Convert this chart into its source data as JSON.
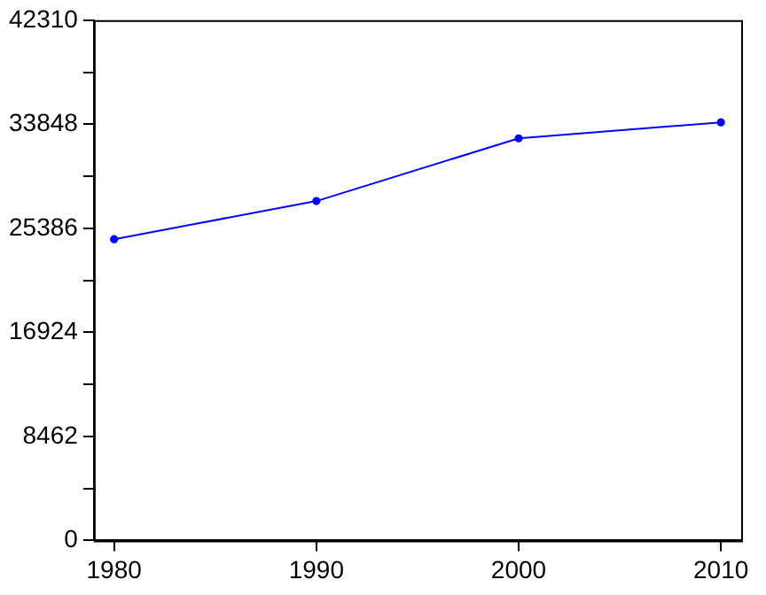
{
  "chart_data": {
    "type": "line",
    "x": [
      1980,
      1990,
      2000,
      2010
    ],
    "series": [
      {
        "color": "#0000ff",
        "values": [
          24500,
          27600,
          32700,
          34000
        ]
      }
    ],
    "xlim": [
      1979,
      2011
    ],
    "xticks": [
      1980,
      1990,
      2000,
      2010
    ],
    "ylim": [
      0,
      42310
    ],
    "yticks": [
      0,
      {
        "value": 4231,
        "label": null
      },
      8462,
      {
        "value": 12693,
        "label": null
      },
      16924,
      {
        "value": 21155,
        "label": null
      },
      25386,
      {
        "value": 29617,
        "label": null
      },
      33848,
      {
        "value": 38079,
        "label": null
      },
      42310
    ],
    "grid": false,
    "legend": false,
    "marker": "circle",
    "line_style": "solid"
  }
}
